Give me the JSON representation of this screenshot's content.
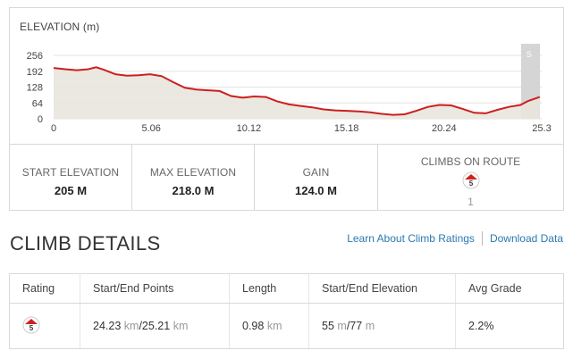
{
  "chart": {
    "title": "ELEVATION (m)",
    "marker_label": "S"
  },
  "chart_data": {
    "type": "area",
    "title": "ELEVATION (m)",
    "ylabel": "m",
    "y_ticks": [
      0,
      64,
      128,
      192,
      256
    ],
    "x_ticks": [
      "0",
      "5.06",
      "10.12",
      "15.18",
      "20.24",
      "25.3"
    ],
    "xlim": [
      0,
      25.3
    ],
    "ylim": [
      0,
      256
    ],
    "grid": true,
    "series": [
      {
        "x": [
          0,
          0.6,
          1.2,
          1.8,
          2.2,
          2.6,
          3.2,
          3.8,
          4.4,
          5.0,
          5.6,
          6.2,
          6.8,
          7.4,
          8.0,
          8.6,
          9.2,
          9.8,
          10.4,
          11.0,
          11.6,
          12.2,
          12.8,
          13.4,
          14.0,
          14.6,
          15.2,
          15.8,
          16.4,
          17.0,
          17.6,
          18.2,
          18.8,
          19.4,
          20.0,
          20.6,
          21.2,
          21.8,
          22.4,
          23.0,
          23.6,
          24.2,
          24.6,
          25.2
        ],
        "y": [
          205,
          200,
          196,
          200,
          208,
          198,
          180,
          174,
          176,
          180,
          172,
          148,
          125,
          118,
          115,
          112,
          92,
          85,
          90,
          88,
          70,
          58,
          52,
          46,
          38,
          34,
          32,
          30,
          26,
          20,
          16,
          18,
          32,
          48,
          56,
          54,
          40,
          24,
          22,
          36,
          48,
          56,
          72,
          88
        ]
      }
    ],
    "climb_segment": [
      24.23,
      25.21
    ]
  },
  "stats": {
    "start_elevation": {
      "label": "START ELEVATION",
      "value": "205 M"
    },
    "max_elevation": {
      "label": "MAX ELEVATION",
      "value": "218.0 M"
    },
    "gain": {
      "label": "GAIN",
      "value": "124.0 M"
    },
    "climbs": {
      "label": "CLIMBS ON ROUTE",
      "badge": "5",
      "count": "1"
    }
  },
  "details": {
    "title": "CLIMB DETAILS",
    "learn_link": "Learn About Climb Ratings",
    "download_link": "Download Data",
    "columns": [
      "Rating",
      "Start/End Points",
      "Length",
      "Start/End Elevation",
      "Avg Grade"
    ],
    "rows": [
      {
        "rating": "5",
        "start_point": "24.23",
        "end_point": "25.21",
        "point_unit": "km",
        "length": "0.98",
        "length_unit": "km",
        "start_elev": "55",
        "end_elev": "77",
        "elev_unit": "m",
        "avg_grade": "2.2%"
      }
    ]
  },
  "colors": {
    "line": "#cc1f1f",
    "fill": "#e8e6dd",
    "link": "#2a7ab0",
    "climb_band": "#d5d5d5"
  }
}
